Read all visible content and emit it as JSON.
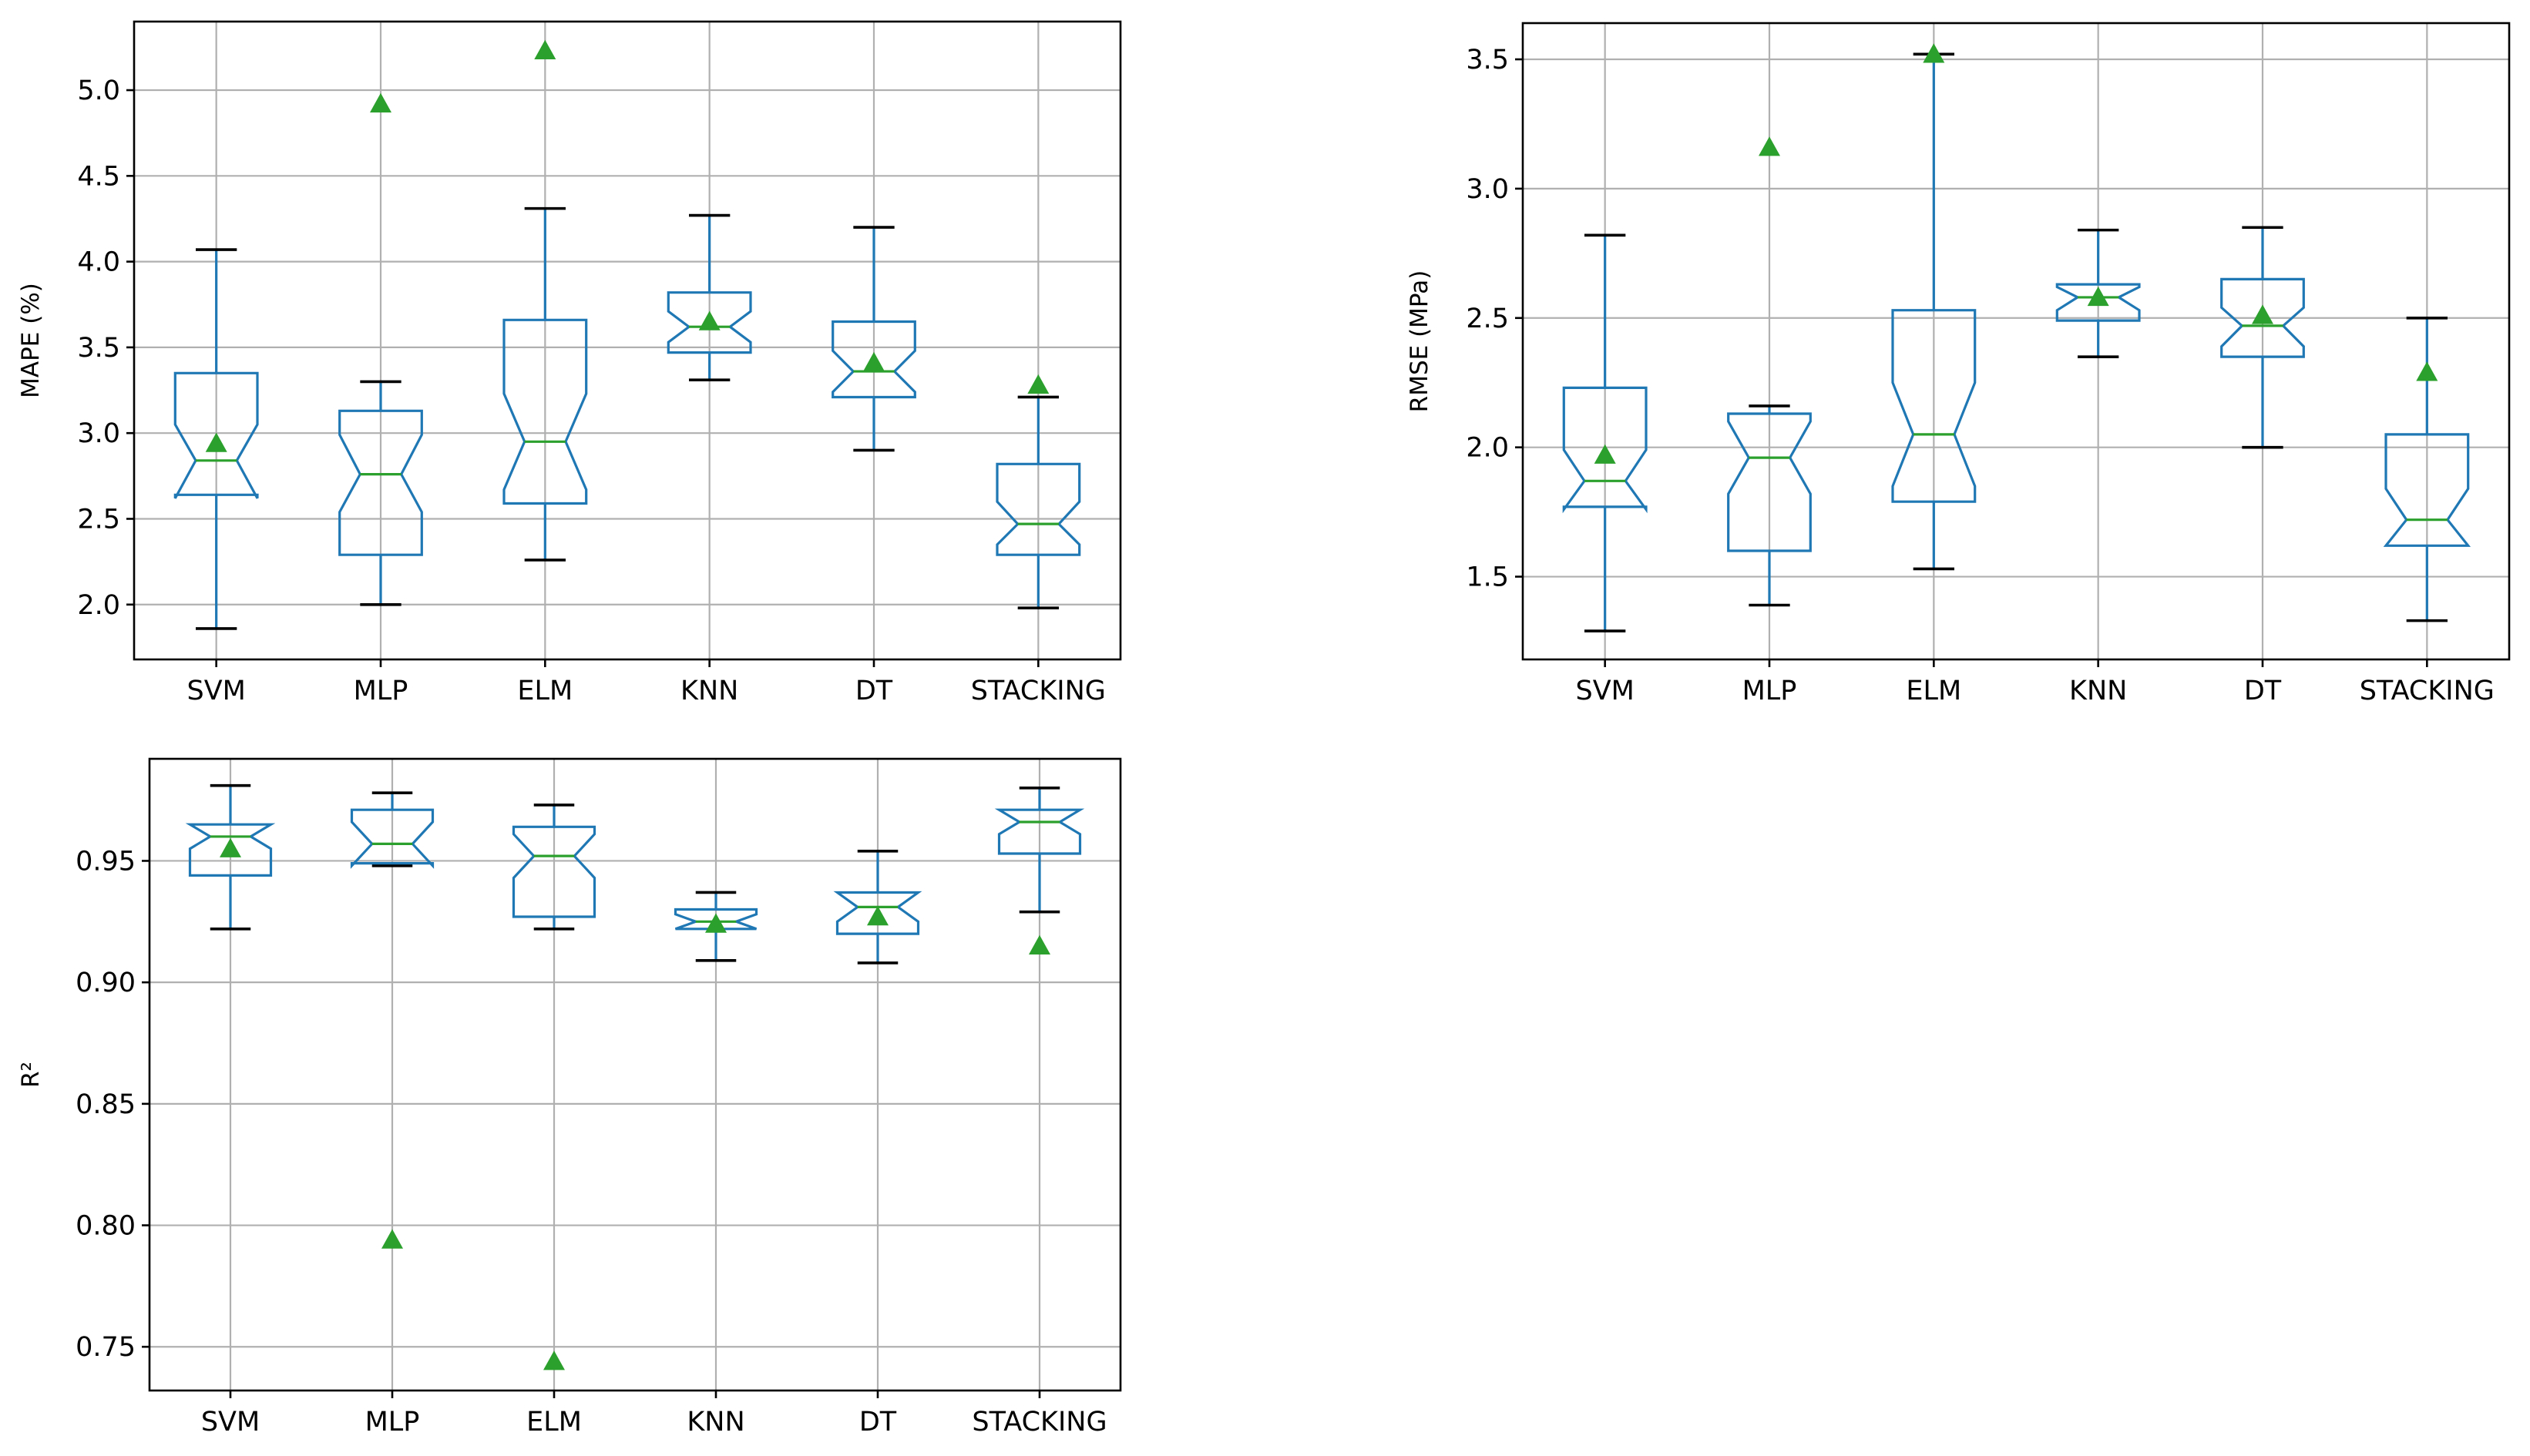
{
  "chart_data": [
    {
      "id": "mape",
      "type": "boxplot",
      "notched": true,
      "showmeans": true,
      "title": "",
      "xlabel": "",
      "ylabel": "MAPE (%)",
      "ylim": [
        1.68,
        5.4
      ],
      "yticks": [
        2.0,
        2.5,
        3.0,
        3.5,
        4.0,
        4.5,
        5.0
      ],
      "ytick_labels": [
        "2.0",
        "2.5",
        "3.0",
        "3.5",
        "4.0",
        "4.5",
        "5.0"
      ],
      "categories": [
        "SVM",
        "MLP",
        "ELM",
        "KNN",
        "DT",
        "STACKING"
      ],
      "boxes": [
        {
          "whislo": 1.86,
          "q1": 2.64,
          "med": 2.84,
          "q3": 3.35,
          "whishi": 4.07,
          "notch_lo": 2.62,
          "notch_hi": 3.05,
          "mean": 2.94
        },
        {
          "whislo": 2.0,
          "q1": 2.29,
          "med": 2.76,
          "q3": 3.13,
          "whishi": 3.3,
          "notch_lo": 2.54,
          "notch_hi": 2.99,
          "mean": 4.92
        },
        {
          "whislo": 2.26,
          "q1": 2.59,
          "med": 2.95,
          "q3": 3.66,
          "whishi": 4.31,
          "notch_lo": 2.67,
          "notch_hi": 3.23,
          "mean": 5.23
        },
        {
          "whislo": 3.31,
          "q1": 3.47,
          "med": 3.62,
          "q3": 3.82,
          "whishi": 4.27,
          "notch_lo": 3.53,
          "notch_hi": 3.71,
          "mean": 3.65
        },
        {
          "whislo": 2.9,
          "q1": 3.21,
          "med": 3.36,
          "q3": 3.65,
          "whishi": 4.2,
          "notch_lo": 3.24,
          "notch_hi": 3.48,
          "mean": 3.41
        },
        {
          "whislo": 1.98,
          "q1": 2.29,
          "med": 2.47,
          "q3": 2.82,
          "whishi": 3.21,
          "notch_lo": 2.35,
          "notch_hi": 2.6,
          "mean": 3.28
        }
      ]
    },
    {
      "id": "rmse",
      "type": "boxplot",
      "notched": true,
      "showmeans": true,
      "title": "",
      "xlabel": "",
      "ylabel": "RMSE (MPa)",
      "ylim": [
        1.18,
        3.64
      ],
      "yticks": [
        1.5,
        2.0,
        2.5,
        3.0,
        3.5
      ],
      "ytick_labels": [
        "1.5",
        "2.0",
        "2.5",
        "3.0",
        "3.5"
      ],
      "categories": [
        "SVM",
        "MLP",
        "ELM",
        "KNN",
        "DT",
        "STACKING"
      ],
      "boxes": [
        {
          "whislo": 1.29,
          "q1": 1.77,
          "med": 1.87,
          "q3": 2.23,
          "whishi": 2.82,
          "notch_lo": 1.76,
          "notch_hi": 1.99,
          "mean": 1.97
        },
        {
          "whislo": 1.39,
          "q1": 1.6,
          "med": 1.96,
          "q3": 2.13,
          "whishi": 2.16,
          "notch_lo": 1.82,
          "notch_hi": 2.1,
          "mean": 3.16
        },
        {
          "whislo": 1.53,
          "q1": 1.79,
          "med": 2.05,
          "q3": 2.53,
          "whishi": 3.52,
          "notch_lo": 1.85,
          "notch_hi": 2.25,
          "mean": 3.52
        },
        {
          "whislo": 2.35,
          "q1": 2.49,
          "med": 2.58,
          "q3": 2.63,
          "whishi": 2.84,
          "notch_lo": 2.53,
          "notch_hi": 2.62,
          "mean": 2.58
        },
        {
          "whislo": 2.0,
          "q1": 2.35,
          "med": 2.47,
          "q3": 2.65,
          "whishi": 2.85,
          "notch_lo": 2.39,
          "notch_hi": 2.54,
          "mean": 2.51
        },
        {
          "whislo": 1.33,
          "q1": 1.62,
          "med": 1.72,
          "q3": 2.05,
          "whishi": 2.5,
          "notch_lo": 1.62,
          "notch_hi": 1.84,
          "mean": 2.29
        }
      ]
    },
    {
      "id": "r2",
      "type": "boxplot",
      "notched": true,
      "showmeans": true,
      "title": "",
      "xlabel": "",
      "ylabel": "R²",
      "ylim": [
        0.732,
        0.992
      ],
      "yticks": [
        0.75,
        0.8,
        0.85,
        0.9,
        0.95
      ],
      "ytick_labels": [
        "0.75",
        "0.80",
        "0.85",
        "0.90",
        "0.95"
      ],
      "categories": [
        "SVM",
        "MLP",
        "ELM",
        "KNN",
        "DT",
        "STACKING"
      ],
      "boxes": [
        {
          "whislo": 0.922,
          "q1": 0.944,
          "med": 0.96,
          "q3": 0.965,
          "whishi": 0.981,
          "notch_lo": 0.955,
          "notch_hi": 0.965,
          "mean": 0.955
        },
        {
          "whislo": 0.948,
          "q1": 0.949,
          "med": 0.957,
          "q3": 0.971,
          "whishi": 0.978,
          "notch_lo": 0.948,
          "notch_hi": 0.966,
          "mean": 0.794
        },
        {
          "whislo": 0.922,
          "q1": 0.927,
          "med": 0.952,
          "q3": 0.964,
          "whishi": 0.973,
          "notch_lo": 0.943,
          "notch_hi": 0.961,
          "mean": 0.744
        },
        {
          "whislo": 0.909,
          "q1": 0.922,
          "med": 0.925,
          "q3": 0.93,
          "whishi": 0.937,
          "notch_lo": 0.922,
          "notch_hi": 0.928,
          "mean": 0.924
        },
        {
          "whislo": 0.908,
          "q1": 0.92,
          "med": 0.931,
          "q3": 0.937,
          "whishi": 0.954,
          "notch_lo": 0.925,
          "notch_hi": 0.937,
          "mean": 0.927
        },
        {
          "whislo": 0.929,
          "q1": 0.953,
          "med": 0.966,
          "q3": 0.971,
          "whishi": 0.98,
          "notch_lo": 0.961,
          "notch_hi": 0.971,
          "mean": 0.915
        }
      ]
    }
  ]
}
